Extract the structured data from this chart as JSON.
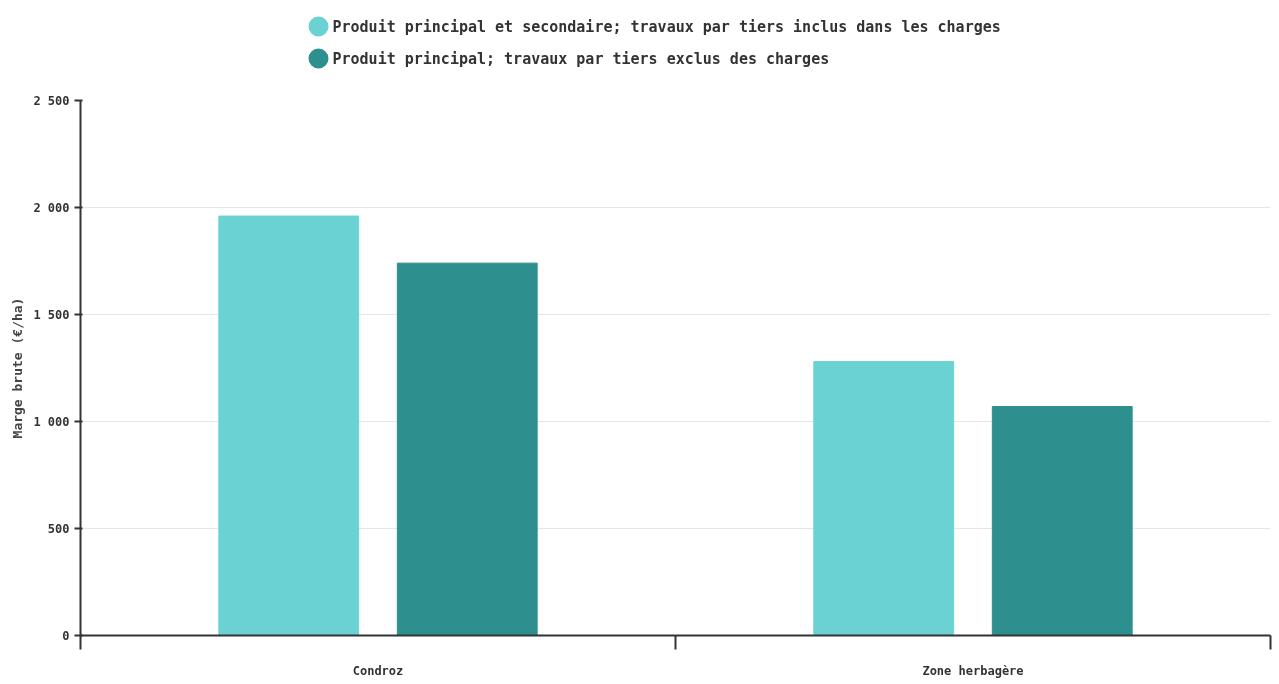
{
  "chart_data": {
    "type": "bar",
    "ylabel": "Marge brute (€/ha)",
    "categories": [
      "Condroz",
      "Zone herbagère"
    ],
    "series": [
      {
        "name": "Produit principal et secondaire; travaux par tiers inclus dans les charges",
        "color": "#6ad2d2",
        "values": [
          1960,
          1280
        ]
      },
      {
        "name": "Produit principal; travaux par tiers exclus des charges",
        "color": "#2e8f8f",
        "values": [
          1740,
          1070
        ]
      }
    ],
    "ylim": [
      0,
      2500
    ],
    "yticks": [
      {
        "value": 0,
        "label": "0"
      },
      {
        "value": 500,
        "label": "500"
      },
      {
        "value": 1000,
        "label": "1 000"
      },
      {
        "value": 1500,
        "label": "1 500"
      },
      {
        "value": 2000,
        "label": "2 000"
      },
      {
        "value": 2500,
        "label": "2 500"
      }
    ],
    "grid": "y",
    "legend": "top"
  }
}
